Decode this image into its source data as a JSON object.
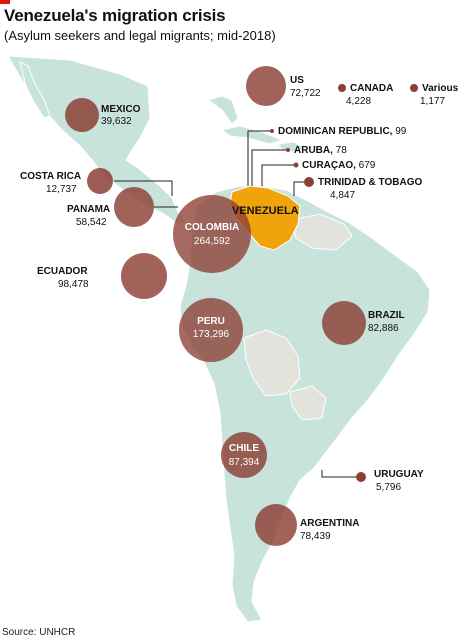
{
  "header": {
    "title": "Venezuela's migration crisis",
    "subtitle": "(Asylum seekers and legal migrants; mid-2018)"
  },
  "footer": {
    "source": "Source: UNHCR"
  },
  "origin": {
    "name": "VENEZUELA",
    "color": "#f0a30a"
  },
  "colors": {
    "bubble": "#8c3f35",
    "land_highlight": "#c8e3dc",
    "land_other": "#e3e3dd",
    "water": "#ffffff"
  },
  "destinations": [
    {
      "name": "US",
      "value": 72722,
      "display": "72,722"
    },
    {
      "name": "CANADA",
      "value": 4228,
      "display": "4,228"
    },
    {
      "name": "Various",
      "value": 1177,
      "display": "1,177"
    },
    {
      "name": "MEXICO",
      "value": 39632,
      "display": "39,632"
    },
    {
      "name": "DOMINICAN REPUBLIC",
      "value": 99,
      "display": "99"
    },
    {
      "name": "ARUBA",
      "value": 78,
      "display": "78"
    },
    {
      "name": "CURAÇAO",
      "value": 679,
      "display": "679"
    },
    {
      "name": "TRINIDAD & TOBAGO",
      "value": 4847,
      "display": "4,847"
    },
    {
      "name": "COSTA RICA",
      "value": 12737,
      "display": "12,737"
    },
    {
      "name": "PANAMA",
      "value": 58542,
      "display": "58,542"
    },
    {
      "name": "COLOMBIA",
      "value": 264592,
      "display": "264,592"
    },
    {
      "name": "ECUADOR",
      "value": 98478,
      "display": "98,478"
    },
    {
      "name": "PERU",
      "value": 173296,
      "display": "173,296"
    },
    {
      "name": "BRAZIL",
      "value": 82886,
      "display": "82,886"
    },
    {
      "name": "CHILE",
      "value": 87394,
      "display": "87,394"
    },
    {
      "name": "URUGUAY",
      "value": 5796,
      "display": "5,796"
    },
    {
      "name": "ARGENTINA",
      "value": 78439,
      "display": "78,439"
    }
  ]
}
